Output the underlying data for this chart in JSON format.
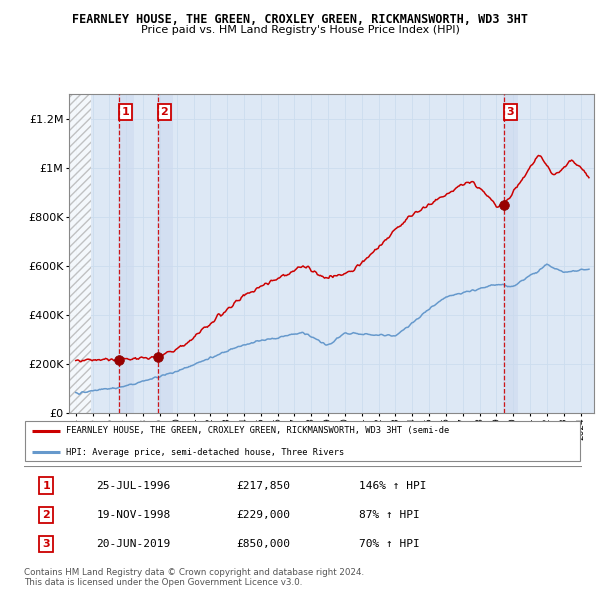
{
  "title": "FEARNLEY HOUSE, THE GREEN, CROXLEY GREEN, RICKMANSWORTH, WD3 3HT",
  "subtitle": "Price paid vs. HM Land Registry's House Price Index (HPI)",
  "ylim": [
    0,
    1300000
  ],
  "yticks": [
    0,
    200000,
    400000,
    600000,
    800000,
    1000000,
    1200000
  ],
  "ytick_labels": [
    "£0",
    "£200K",
    "£400K",
    "£600K",
    "£800K",
    "£1M",
    "£1.2M"
  ],
  "xstart": 1994,
  "xend": 2024,
  "sale_dates": [
    1996.57,
    1998.89,
    2019.46
  ],
  "sale_prices": [
    217850,
    229000,
    850000
  ],
  "sale_labels": [
    "1",
    "2",
    "3"
  ],
  "red_line_color": "#cc0000",
  "blue_line_color": "#6699cc",
  "sale_dot_color": "#990000",
  "marker_label_color": "#cc0000",
  "grid_color": "#ccddee",
  "dashed_line_color": "#cc0000",
  "legend_line1": "FEARNLEY HOUSE, THE GREEN, CROXLEY GREEN, RICKMANSWORTH, WD3 3HT (semi-de",
  "legend_line2": "HPI: Average price, semi-detached house, Three Rivers",
  "table_rows": [
    [
      "1",
      "25-JUL-1996",
      "£217,850",
      "146% ↑ HPI"
    ],
    [
      "2",
      "19-NOV-1998",
      "£229,000",
      "87% ↑ HPI"
    ],
    [
      "3",
      "20-JUN-2019",
      "£850,000",
      "70% ↑ HPI"
    ]
  ],
  "footnote": "Contains HM Land Registry data © Crown copyright and database right 2024.\nThis data is licensed under the Open Government Licence v3.0.",
  "bg_color": "#ffffff",
  "plot_bg_color": "#dde8f5",
  "shade_band_color": "#ccd9ee"
}
